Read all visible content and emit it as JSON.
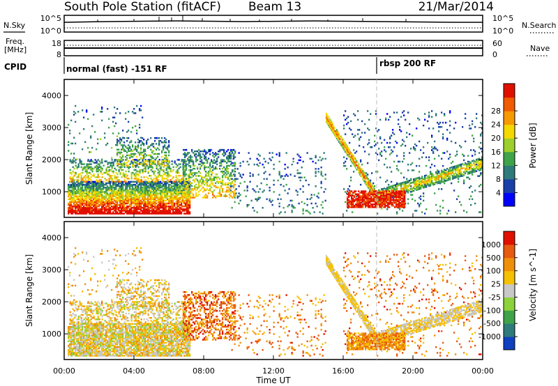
{
  "header": {
    "station": "South Pole Station (fitACF)",
    "beam": "Beam 13",
    "date": "21/Mar/2014"
  },
  "top_panels": {
    "nsky_label": "N.Sky",
    "nsky_ticks": [
      "10^5",
      "10^0"
    ],
    "nsearch_label": "N.Search",
    "nsearch_ticks": [
      "10^5",
      "10^0"
    ],
    "freq_label_1": "Freq.",
    "freq_label_2": "[MHz]",
    "freq_ticks": [
      "18",
      "8"
    ],
    "nave_label": "Nave",
    "nave_ticks": [
      "60",
      "0"
    ],
    "cpid_label": "CPID",
    "cpid_segments": [
      {
        "label": "normal (fast) -151 RF",
        "start_hour": 0
      },
      {
        "label": "rbsp 200 RF",
        "start_hour": 18
      }
    ]
  },
  "chart_data": [
    {
      "type": "heatmap",
      "ylabel": "Slant Range [km]",
      "xlabel": "Time UT",
      "xlim": [
        0,
        24
      ],
      "ylim": [
        200,
        4500
      ],
      "x_ticks": [
        "00:00",
        "04:00",
        "08:00",
        "12:00",
        "16:00",
        "20:00",
        "00:00"
      ],
      "y_ticks": [
        1000,
        2000,
        3000,
        4000
      ],
      "colorbar_label": "Power [dB]",
      "colorbar_ticks": [
        4,
        8,
        12,
        16,
        20,
        24,
        28
      ],
      "colors": [
        "#0000ff",
        "#1a3fa8",
        "#2f7a7a",
        "#3fa34a",
        "#9ccf2b",
        "#f5d800",
        "#f59a00",
        "#f05a00",
        "#e01000"
      ]
    },
    {
      "type": "heatmap",
      "ylabel": "Slant Range [km]",
      "xlabel": "Time UT",
      "xlim": [
        0,
        24
      ],
      "ylim": [
        200,
        4500
      ],
      "x_ticks": [
        "00:00",
        "04:00",
        "08:00",
        "12:00",
        "16:00",
        "20:00",
        "00:00"
      ],
      "y_ticks": [
        1000,
        2000,
        3000,
        4000
      ],
      "colorbar_label": "Velocity [m s^-1]",
      "colorbar_ticks": [
        1000,
        500,
        100,
        25,
        -25,
        -100,
        -500,
        -1000
      ],
      "colors": [
        "#1040c0",
        "#2f7a7a",
        "#3fa34a",
        "#8cd23a",
        "#c8c8c8",
        "#f5c000",
        "#f0900a",
        "#e85a10",
        "#e01000"
      ]
    }
  ]
}
